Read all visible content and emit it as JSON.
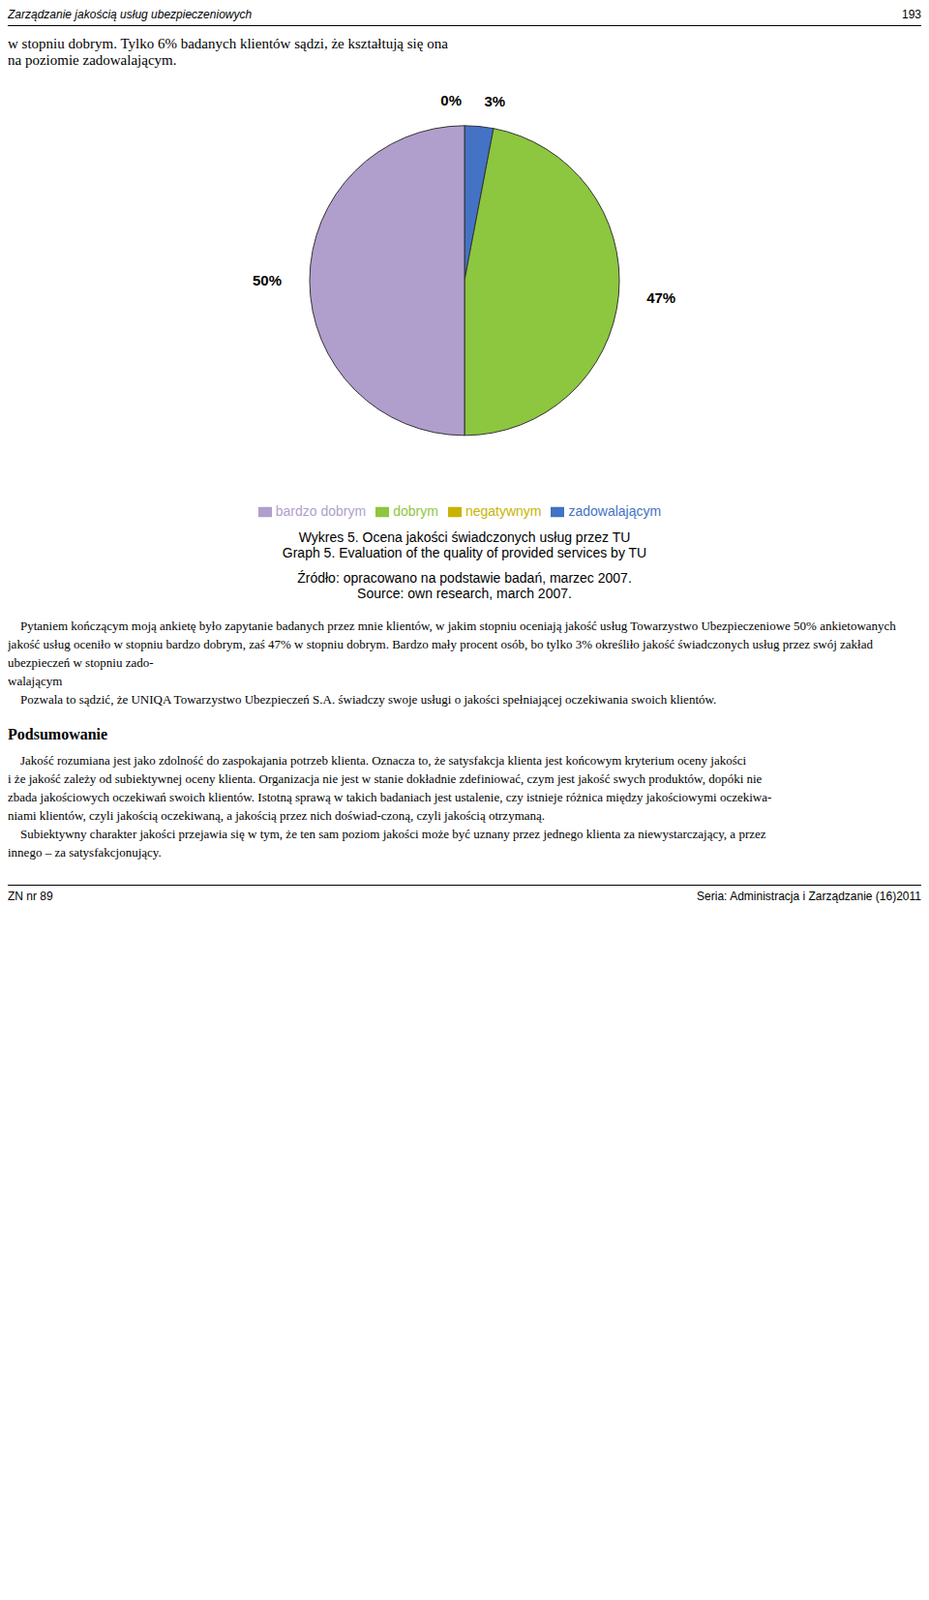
{
  "chart_data": {
    "type": "pie",
    "title": "Wykres 5. Ocena jakości świadczonych usług przez TU",
    "subtitle": "Graph 5.  Evaluation of the quality of provided services by TU",
    "categories": [
      "negatywnym",
      "zadowalającym",
      "dobrym",
      "bardzo dobrym"
    ],
    "values": [
      0,
      3,
      47,
      50
    ],
    "value_labels": [
      "0%",
      "3%",
      "47%",
      "50%"
    ],
    "colors": [
      "#c8b400",
      "#4472c4",
      "#8dc63f",
      "#b09fcc"
    ],
    "data_labels": true,
    "legend": "bottom",
    "annotations": [
      "Zarządzanie jakością usług ubezpieczeniowych",
      "193",
      "w stopniu dobrym. Tylko 6% badanych klientów sądzi, że kształtują się ona\nna poziomie zadowalającym.",
      "Źródło: opracowano na podstawie badań, marzec 2007.",
      "Source: own research, march 2007.",
      "    Pytaniem kończącym moją ankietę było zapytanie badanych przez mnie klientów, w jakim stopniu oceniają jakość usług Towarzystwo Ubezpieczeniowe 50% ankietowanych",
      "jakość usług oceniło w stopniu bardzo dobrym, zaś 47% w stopniu dobrym. Bardzo mały procent osób, bo tylko 3% określiło jakość świadczonych usług przez swój zakład ubezpieczeń w stopniu zado-",
      "walającym",
      "    Pozwala to sądzić, że UNIQA Towarzystwo Ubezpieczeń S.A. świadczy swoje usługi o jakości spełniającej oczekiwania swoich klientów.",
      "Podsumowanie",
      "    Jakość rozumiana jest jako zdolność do zaspokajania potrzeb klienta. Oznacza to, że satysfakcja klienta jest końcowym kryterium oceny jakości",
      "i że jakość zależy od subiektywnej oceny klienta. Organizacja nie jest w stanie dokładnie zdefiniować, czym jest jakość swych produktów, dopóki nie",
      "zbada jakościowych oczekiwań swoich klientów. Istotną sprawą w takich badaniach jest ustalenie, czy istnieje różnica między jakościowymi oczekiwa-",
      "niami klientów, czyli jakością oczekiwaną, a jakością przez nich doświad-czoną, czyli jakością otrzymaną.",
      "    Subiektywny charakter jakości przejawia się w tym, że ten sam poziom jakości może być uznany przez jednego klienta za niewystarczający, a przez",
      "innego – za satysfakcjonujący.",
      "ZN nr 89",
      "Seria: Administracja i Zarządzanie (16)2011"
    ]
  }
}
